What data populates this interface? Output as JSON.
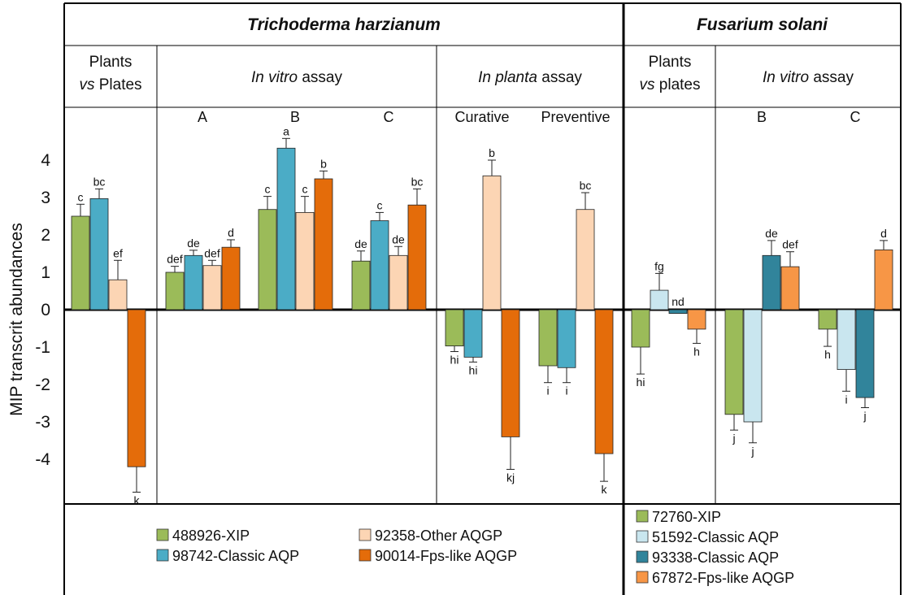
{
  "colors": {
    "th_xip": "#9bbb59",
    "th_classic": "#4bacc6",
    "th_other": "#fcd5b4",
    "th_fps": "#e46c0a",
    "fs_xip": "#9bbb59",
    "fs_classic1": "#c9e6ef",
    "fs_classic2": "#31849b",
    "fs_fps": "#f79646"
  },
  "headers": {
    "species_left": "Trichoderma harzianum",
    "species_right": "Fusarium solani",
    "sub": [
      {
        "line1": "Plants",
        "line2_it": "vs",
        "line2": " Plates"
      },
      {
        "it": "In vitro",
        "rest": " assay"
      },
      {
        "it": "In planta",
        "rest": " assay"
      },
      {
        "line1": "Plants",
        "line2_it": "vs",
        "line2": " plates"
      },
      {
        "it": "In vitro",
        "rest": " assay"
      }
    ]
  },
  "chart_data": {
    "type": "bar",
    "ylabel": "MIP transcrit abundances",
    "ylim": [
      -5,
      5
    ],
    "yticks": [
      4,
      3,
      2,
      1,
      0,
      -1,
      -2,
      -3,
      -4
    ],
    "groups": [
      {
        "label": "",
        "section": "th_plants",
        "bars": [
          {
            "series": "488926-XIP",
            "value": 2.5,
            "err": 0.32,
            "sig": "c"
          },
          {
            "series": "98742-Classic AQP",
            "value": 2.97,
            "err": 0.26,
            "sig": "bc"
          },
          {
            "series": "92358-Other AQGP",
            "value": 0.8,
            "err": 0.52,
            "sig": "ef"
          },
          {
            "series": "90014-Fps-like AQGP",
            "value": -4.2,
            "err": 0.68,
            "sig": "k"
          }
        ]
      },
      {
        "label": "A",
        "section": "th_vitro",
        "bars": [
          {
            "series": "488926-XIP",
            "value": 1.0,
            "err": 0.16,
            "sig": "def"
          },
          {
            "series": "98742-Classic AQP",
            "value": 1.45,
            "err": 0.14,
            "sig": "de"
          },
          {
            "series": "92358-Other AQGP",
            "value": 1.18,
            "err": 0.14,
            "sig": "def"
          },
          {
            "series": "90014-Fps-like AQGP",
            "value": 1.67,
            "err": 0.2,
            "sig": "d"
          }
        ]
      },
      {
        "label": "B",
        "section": "th_vitro",
        "bars": [
          {
            "series": "488926-XIP",
            "value": 2.68,
            "err": 0.35,
            "sig": "c"
          },
          {
            "series": "98742-Classic AQP",
            "value": 4.32,
            "err": 0.26,
            "sig": "a"
          },
          {
            "series": "92358-Other AQGP",
            "value": 2.6,
            "err": 0.43,
            "sig": "c"
          },
          {
            "series": "90014-Fps-like AQGP",
            "value": 3.5,
            "err": 0.21,
            "sig": "b"
          }
        ]
      },
      {
        "label": "C",
        "section": "th_vitro",
        "bars": [
          {
            "series": "488926-XIP",
            "value": 1.3,
            "err": 0.27,
            "sig": "de"
          },
          {
            "series": "98742-Classic AQP",
            "value": 2.38,
            "err": 0.22,
            "sig": "c"
          },
          {
            "series": "92358-Other AQGP",
            "value": 1.45,
            "err": 0.24,
            "sig": "de"
          },
          {
            "series": "90014-Fps-like AQGP",
            "value": 2.8,
            "err": 0.43,
            "sig": "bc"
          }
        ]
      },
      {
        "label": "Curative",
        "section": "th_planta",
        "bars": [
          {
            "series": "488926-XIP",
            "value": -0.97,
            "err": 0.15,
            "sig": "hi"
          },
          {
            "series": "98742-Classic AQP",
            "value": -1.27,
            "err": 0.13,
            "sig": "hi"
          },
          {
            "series": "92358-Other AQGP",
            "value": 3.58,
            "err": 0.42,
            "sig": "b"
          },
          {
            "series": "90014-Fps-like AQGP",
            "value": -3.4,
            "err": 0.87,
            "sig": "kj"
          }
        ]
      },
      {
        "label": "Preventive",
        "section": "th_planta",
        "bars": [
          {
            "series": "488926-XIP",
            "value": -1.5,
            "err": 0.45,
            "sig": "i"
          },
          {
            "series": "98742-Classic AQP",
            "value": -1.55,
            "err": 0.4,
            "sig": "i"
          },
          {
            "series": "92358-Other AQGP",
            "value": 2.68,
            "err": 0.45,
            "sig": "bc"
          },
          {
            "series": "90014-Fps-like AQGP",
            "value": -3.85,
            "err": 0.74,
            "sig": "k"
          }
        ]
      },
      {
        "label": "",
        "section": "fs_plants",
        "bars": [
          {
            "series": "72760-XIP",
            "value": -1.0,
            "err": 0.72,
            "sig": "hi"
          },
          {
            "series": "51592-Classic AQP",
            "value": 0.52,
            "err": 0.45,
            "sig": "fg"
          },
          {
            "series": "93338-Classic AQP",
            "value": -0.1,
            "err": 0.0,
            "sig": "nd"
          },
          {
            "series": "67872-Fps-like AQGP",
            "value": -0.52,
            "err": 0.38,
            "sig": "h"
          }
        ]
      },
      {
        "label": "B",
        "section": "fs_vitro",
        "bars": [
          {
            "series": "72760-XIP",
            "value": -2.8,
            "err": 0.42,
            "sig": "j"
          },
          {
            "series": "51592-Classic AQP",
            "value": -3.0,
            "err": 0.56,
            "sig": "j"
          },
          {
            "series": "93338-Classic AQP",
            "value": 1.45,
            "err": 0.4,
            "sig": "de"
          },
          {
            "series": "67872-Fps-like AQGP",
            "value": 1.15,
            "err": 0.4,
            "sig": "def"
          }
        ]
      },
      {
        "label": "C",
        "section": "fs_vitro",
        "bars": [
          {
            "series": "72760-XIP",
            "value": -0.52,
            "err": 0.46,
            "sig": "h"
          },
          {
            "series": "51592-Classic AQP",
            "value": -1.6,
            "err": 0.58,
            "sig": "i"
          },
          {
            "series": "93338-Classic AQP",
            "value": -2.35,
            "err": 0.27,
            "sig": "j"
          },
          {
            "series": "67872-Fps-like AQGP",
            "value": 1.6,
            "err": 0.25,
            "sig": "d"
          }
        ]
      }
    ],
    "legend_left": [
      {
        "name": "488926-XIP",
        "color": "#9bbb59"
      },
      {
        "name": "98742-Classic AQP",
        "color": "#4bacc6"
      },
      {
        "name": "92358-Other AQGP",
        "color": "#fcd5b4"
      },
      {
        "name": "90014-Fps-like AQGP",
        "color": "#e46c0a"
      }
    ],
    "legend_right": [
      {
        "name": "72760-XIP",
        "color": "#9bbb59"
      },
      {
        "name": "51592-Classic AQP",
        "color": "#c9e6ef"
      },
      {
        "name": "93338-Classic AQP",
        "color": "#31849b"
      },
      {
        "name": "67872-Fps-like AQGP",
        "color": "#f79646"
      }
    ]
  }
}
